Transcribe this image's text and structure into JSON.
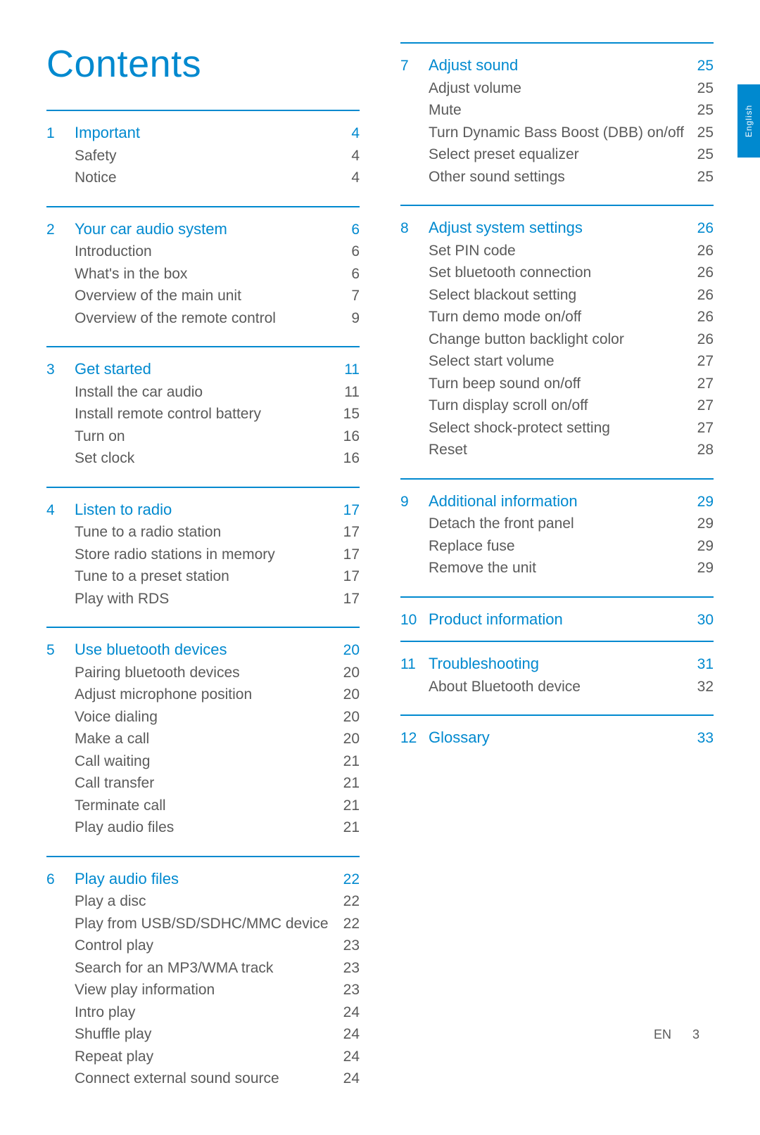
{
  "title": "Contents",
  "language_tab": "English",
  "footer": {
    "lang": "EN",
    "page": "3"
  },
  "colors": {
    "accent": "#0089cf",
    "text": "#5a5a5a",
    "background": "#ffffff"
  },
  "left_sections": [
    {
      "num": "1",
      "head": "Important",
      "head_page": "4",
      "items": [
        {
          "label": "Safety",
          "page": "4"
        },
        {
          "label": "Notice",
          "page": "4"
        }
      ]
    },
    {
      "num": "2",
      "head": "Your car audio system",
      "head_page": "6",
      "items": [
        {
          "label": "Introduction",
          "page": "6"
        },
        {
          "label": "What's in the box",
          "page": "6"
        },
        {
          "label": "Overview of the main unit",
          "page": "7"
        },
        {
          "label": "Overview of the remote control",
          "page": "9"
        }
      ]
    },
    {
      "num": "3",
      "head": "Get started",
      "head_page": "11",
      "items": [
        {
          "label": "Install the car audio",
          "page": "11"
        },
        {
          "label": "Install remote control battery",
          "page": "15"
        },
        {
          "label": "Turn on",
          "page": "16"
        },
        {
          "label": "Set clock",
          "page": "16"
        }
      ]
    },
    {
      "num": "4",
      "head": "Listen to radio",
      "head_page": "17",
      "items": [
        {
          "label": "Tune to a radio station",
          "page": "17"
        },
        {
          "label": "Store radio stations in memory",
          "page": "17"
        },
        {
          "label": "Tune to a preset station",
          "page": "17"
        },
        {
          "label": "Play with RDS",
          "page": "17"
        }
      ]
    },
    {
      "num": "5",
      "head": "Use bluetooth devices",
      "head_page": "20",
      "items": [
        {
          "label": "Pairing bluetooth devices",
          "page": "20"
        },
        {
          "label": "Adjust microphone position",
          "page": "20"
        },
        {
          "label": "Voice dialing",
          "page": "20"
        },
        {
          "label": "Make a call",
          "page": "20"
        },
        {
          "label": "Call waiting",
          "page": "21"
        },
        {
          "label": "Call transfer",
          "page": "21"
        },
        {
          "label": "Terminate call",
          "page": "21"
        },
        {
          "label": "Play audio files",
          "page": "21"
        }
      ]
    },
    {
      "num": "6",
      "head": "Play audio files",
      "head_page": "22",
      "items": [
        {
          "label": "Play a disc",
          "page": "22"
        },
        {
          "label": "Play from USB/SD/SDHC/MMC device",
          "page": "22"
        },
        {
          "label": "Control play",
          "page": "23"
        },
        {
          "label": "Search for an MP3/WMA track",
          "page": "23"
        },
        {
          "label": "View play information",
          "page": "23"
        },
        {
          "label": "Intro play",
          "page": "24"
        },
        {
          "label": "Shuffle play",
          "page": "24"
        },
        {
          "label": "Repeat play",
          "page": "24"
        },
        {
          "label": "Connect external sound source",
          "page": "24"
        }
      ]
    }
  ],
  "right_sections": [
    {
      "num": "7",
      "head": "Adjust sound",
      "head_page": "25",
      "items": [
        {
          "label": "Adjust volume",
          "page": "25"
        },
        {
          "label": "Mute",
          "page": "25"
        },
        {
          "label": "Turn Dynamic Bass Boost (DBB) on/off",
          "page": "25"
        },
        {
          "label": "Select preset equalizer",
          "page": "25"
        },
        {
          "label": "Other sound settings",
          "page": "25"
        }
      ]
    },
    {
      "num": "8",
      "head": "Adjust system settings",
      "head_page": "26",
      "items": [
        {
          "label": "Set PIN code",
          "page": "26"
        },
        {
          "label": "Set bluetooth connection",
          "page": "26"
        },
        {
          "label": "Select blackout setting",
          "page": "26"
        },
        {
          "label": "Turn demo mode on/off",
          "page": "26"
        },
        {
          "label": "Change button backlight color",
          "page": "26"
        },
        {
          "label": "Select start volume",
          "page": "27"
        },
        {
          "label": "Turn beep sound on/off",
          "page": "27"
        },
        {
          "label": "Turn display scroll on/off",
          "page": "27"
        },
        {
          "label": "Select shock-protect setting",
          "page": "27"
        },
        {
          "label": "Reset",
          "page": "28"
        }
      ]
    },
    {
      "num": "9",
      "head": "Additional information",
      "head_page": "29",
      "items": [
        {
          "label": "Detach the front panel",
          "page": "29"
        },
        {
          "label": "Replace fuse",
          "page": "29"
        },
        {
          "label": "Remove the unit",
          "page": "29"
        }
      ]
    },
    {
      "num": "10",
      "head": "Product information",
      "head_page": "30",
      "items": []
    },
    {
      "num": "11",
      "head": "Troubleshooting",
      "head_page": "31",
      "items": [
        {
          "label": "About Bluetooth device",
          "page": "32"
        }
      ]
    },
    {
      "num": "12",
      "head": "Glossary",
      "head_page": "33",
      "items": []
    }
  ]
}
